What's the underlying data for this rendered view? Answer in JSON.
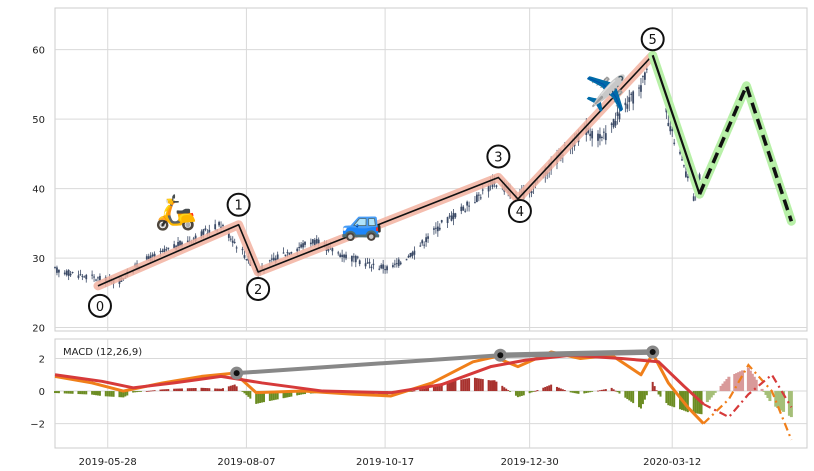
{
  "chart_data": [
    {
      "type": "candlestick",
      "panel": "price",
      "xlim": [
        "2019-05-01",
        "2020-05-20"
      ],
      "ylim": [
        19.5,
        66
      ],
      "yticks": [
        20,
        30,
        40,
        50,
        60
      ],
      "xticks": [
        "2019-05-28",
        "2019-08-07",
        "2019-10-17",
        "2019-12-30",
        "2020-03-12"
      ],
      "grid": true,
      "colors": {
        "candle": "#3b4a66",
        "wave_band": "#f2b2a0",
        "wave_line": "#111111",
        "forecast_glow": "#b8f0a8",
        "forecast_line": "#111111"
      },
      "price_anchors": [
        {
          "x": "2019-05-01",
          "y": 28.3
        },
        {
          "x": "2019-05-20",
          "y": 27.2
        },
        {
          "x": "2019-06-02",
          "y": 26.5
        },
        {
          "x": "2019-06-15",
          "y": 29.5
        },
        {
          "x": "2019-07-01",
          "y": 31.5
        },
        {
          "x": "2019-07-12",
          "y": 33.0
        },
        {
          "x": "2019-07-25",
          "y": 34.8
        },
        {
          "x": "2019-08-02",
          "y": 32.0
        },
        {
          "x": "2019-08-13",
          "y": 28.0
        },
        {
          "x": "2019-08-25",
          "y": 30.5
        },
        {
          "x": "2019-09-10",
          "y": 32.5
        },
        {
          "x": "2019-09-25",
          "y": 30.5
        },
        {
          "x": "2019-10-10",
          "y": 29.0
        },
        {
          "x": "2019-10-20",
          "y": 28.5
        },
        {
          "x": "2019-11-01",
          "y": 31.0
        },
        {
          "x": "2019-11-15",
          "y": 35.0
        },
        {
          "x": "2019-11-28",
          "y": 37.5
        },
        {
          "x": "2019-12-12",
          "y": 41.0
        },
        {
          "x": "2019-12-18",
          "y": 40.0
        },
        {
          "x": "2019-12-24",
          "y": 38.5
        },
        {
          "x": "2019-12-31",
          "y": 40.0
        },
        {
          "x": "2020-01-15",
          "y": 45.0
        },
        {
          "x": "2020-01-28",
          "y": 48.5
        },
        {
          "x": "2020-02-05",
          "y": 47.0
        },
        {
          "x": "2020-02-15",
          "y": 51.0
        },
        {
          "x": "2020-02-25",
          "y": 54.5
        },
        {
          "x": "2020-03-02",
          "y": 60.0
        },
        {
          "x": "2020-03-06",
          "y": 56.0
        },
        {
          "x": "2020-03-10",
          "y": 49.0
        },
        {
          "x": "2020-03-14",
          "y": 46.5
        },
        {
          "x": "2020-03-18",
          "y": 43.0
        },
        {
          "x": "2020-03-23",
          "y": 38.5
        },
        {
          "x": "2020-03-26",
          "y": 42.0
        }
      ],
      "wave_points": [
        {
          "label": "0",
          "x": "2019-05-23",
          "y": 26.0
        },
        {
          "label": "1",
          "x": "2019-08-03",
          "y": 34.8
        },
        {
          "label": "2",
          "x": "2019-08-13",
          "y": 28.0
        },
        {
          "label": "3",
          "x": "2019-12-14",
          "y": 41.6
        },
        {
          "label": "4",
          "x": "2019-12-24",
          "y": 38.5
        },
        {
          "label": "5",
          "x": "2020-03-02",
          "y": 59.2
        }
      ],
      "forecast_points": [
        {
          "x": "2020-03-02",
          "y": 59.2
        },
        {
          "x": "2020-03-26",
          "y": 39.2
        },
        {
          "x": "2020-04-19",
          "y": 54.8
        },
        {
          "x": "2020-05-12",
          "y": 35.3
        }
      ],
      "icons": [
        {
          "name": "scooter-icon",
          "glyph": "🛵",
          "x": "2019-07-02",
          "y": 35.0
        },
        {
          "name": "car-icon",
          "glyph": "🚙",
          "x": "2019-10-05",
          "y": 33.5
        },
        {
          "name": "airplane-icon",
          "glyph": "✈️",
          "x": "2020-02-07",
          "y": 52.0
        }
      ]
    },
    {
      "type": "macd",
      "panel": "indicator",
      "label": "MACD (12,26,9)",
      "xlim": [
        "2019-05-01",
        "2020-05-20"
      ],
      "ylim": [
        -3.5,
        3.2
      ],
      "yticks": [
        -2,
        0,
        2
      ],
      "grid": true,
      "colors": {
        "macd": "#f07f1a",
        "signal": "#d63a3a",
        "hist_pos": "#a8322e",
        "hist_neg": "#6b8c22",
        "forecast_pos": "#d99a9a",
        "forecast_neg": "#a5bf78",
        "divergence": "#888888"
      },
      "macd_anchors": [
        {
          "x": "2019-05-01",
          "y": 0.9
        },
        {
          "x": "2019-05-20",
          "y": 0.5
        },
        {
          "x": "2019-06-05",
          "y": 0.0
        },
        {
          "x": "2019-06-25",
          "y": 0.5
        },
        {
          "x": "2019-07-15",
          "y": 0.9
        },
        {
          "x": "2019-08-01",
          "y": 1.1
        },
        {
          "x": "2019-08-12",
          "y": -0.1
        },
        {
          "x": "2019-09-05",
          "y": 0.0
        },
        {
          "x": "2019-10-01",
          "y": -0.2
        },
        {
          "x": "2019-10-20",
          "y": -0.3
        },
        {
          "x": "2019-11-10",
          "y": 0.5
        },
        {
          "x": "2019-12-01",
          "y": 1.8
        },
        {
          "x": "2019-12-12",
          "y": 2.1
        },
        {
          "x": "2019-12-24",
          "y": 1.5
        },
        {
          "x": "2020-01-10",
          "y": 2.4
        },
        {
          "x": "2020-01-25",
          "y": 2.0
        },
        {
          "x": "2020-02-10",
          "y": 2.2
        },
        {
          "x": "2020-02-25",
          "y": 1.0
        },
        {
          "x": "2020-03-02",
          "y": 2.3
        },
        {
          "x": "2020-03-10",
          "y": 0.5
        },
        {
          "x": "2020-03-20",
          "y": -1.0
        },
        {
          "x": "2020-03-28",
          "y": -2.0
        }
      ],
      "signal_anchors": [
        {
          "x": "2019-05-01",
          "y": 1.0
        },
        {
          "x": "2019-05-25",
          "y": 0.6
        },
        {
          "x": "2019-06-10",
          "y": 0.2
        },
        {
          "x": "2019-07-01",
          "y": 0.5
        },
        {
          "x": "2019-07-25",
          "y": 0.9
        },
        {
          "x": "2019-08-15",
          "y": 0.5
        },
        {
          "x": "2019-09-15",
          "y": 0.0
        },
        {
          "x": "2019-10-20",
          "y": -0.1
        },
        {
          "x": "2019-11-15",
          "y": 0.4
        },
        {
          "x": "2019-12-10",
          "y": 1.5
        },
        {
          "x": "2019-12-28",
          "y": 1.9
        },
        {
          "x": "2020-01-20",
          "y": 2.2
        },
        {
          "x": "2020-02-15",
          "y": 2.0
        },
        {
          "x": "2020-03-05",
          "y": 1.8
        },
        {
          "x": "2020-03-18",
          "y": 0.3
        },
        {
          "x": "2020-03-28",
          "y": -0.8
        }
      ],
      "macd_forecast": [
        {
          "x": "2020-03-28",
          "y": -2.0
        },
        {
          "x": "2020-04-10",
          "y": -0.5
        },
        {
          "x": "2020-04-20",
          "y": 1.6
        },
        {
          "x": "2020-05-02",
          "y": 0.0
        },
        {
          "x": "2020-05-12",
          "y": -3.0
        }
      ],
      "signal_forecast": [
        {
          "x": "2020-03-28",
          "y": -0.8
        },
        {
          "x": "2020-04-10",
          "y": -1.6
        },
        {
          "x": "2020-04-20",
          "y": -0.2
        },
        {
          "x": "2020-05-02",
          "y": 1.0
        },
        {
          "x": "2020-05-12",
          "y": -1.0
        }
      ],
      "divergence_points": [
        {
          "x": "2019-08-02",
          "y": 1.1
        },
        {
          "x": "2019-12-15",
          "y": 2.2
        },
        {
          "x": "2020-03-02",
          "y": 2.4
        }
      ]
    }
  ]
}
